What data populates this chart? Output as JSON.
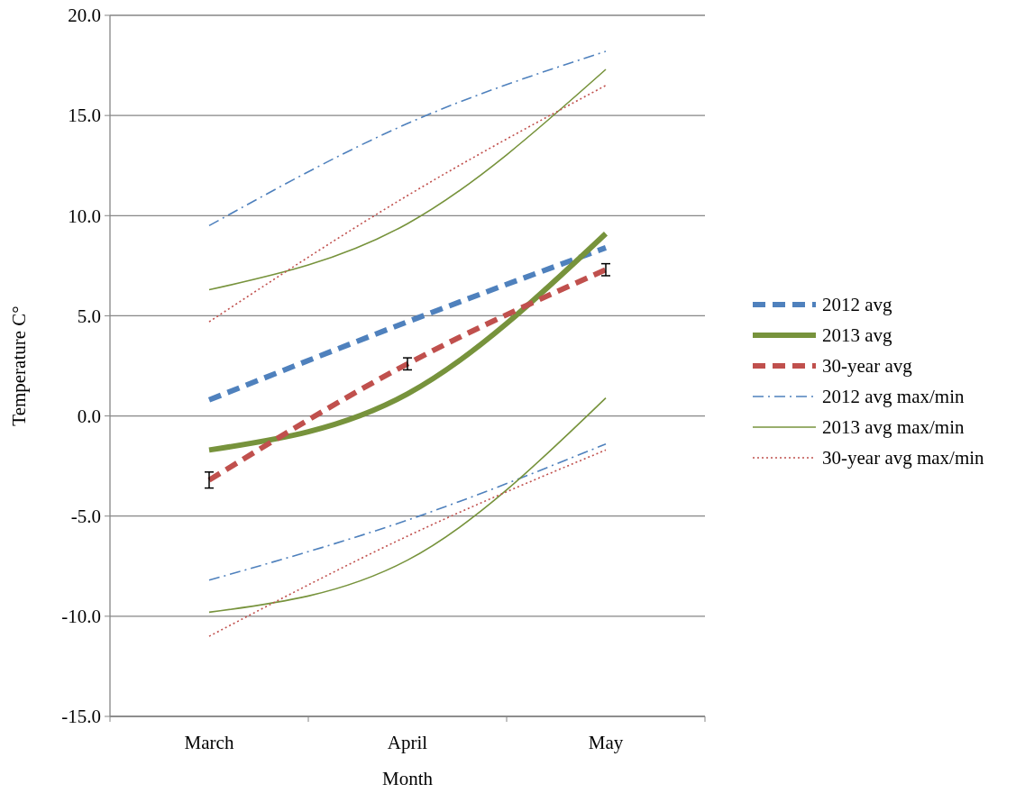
{
  "chart_data": {
    "type": "line",
    "xlabel": "Month",
    "ylabel": "Temperature C°",
    "categories": [
      "March",
      "April",
      "May"
    ],
    "ylim": [
      -15,
      20
    ],
    "yticks": [
      {
        "value": -15,
        "label": "-15.0"
      },
      {
        "value": -10,
        "label": "-10.0"
      },
      {
        "value": -5,
        "label": "-5.0"
      },
      {
        "value": 0,
        "label": "0.0"
      },
      {
        "value": 5,
        "label": "5.0"
      },
      {
        "value": 10,
        "label": "10.0"
      },
      {
        "value": 15,
        "label": "15.0"
      },
      {
        "value": 20,
        "label": "20.0"
      }
    ],
    "grid": "y",
    "legend": "right",
    "series": [
      {
        "name": "2012 avg",
        "color": "#4f81bd",
        "values": [
          0.8,
          4.7,
          8.4
        ],
        "line_style": "dashed"
      },
      {
        "name": "2013 avg",
        "color": "#77933c",
        "values": [
          -1.7,
          1.1,
          9.1
        ],
        "line_style": "solid"
      },
      {
        "name": "30-year avg",
        "color": "#c0504d",
        "values": [
          -3.2,
          2.6,
          7.3
        ],
        "line_style": "dashed",
        "errors": [
          0.4,
          0.3,
          0.3
        ]
      },
      {
        "name": "2012 avg max/min",
        "color": "#4f81bd",
        "values": [
          9.5,
          14.6,
          18.2
        ],
        "line_style": "dashed"
      },
      {
        "name": "2013 avg max/min",
        "color": "#77933c",
        "values": [
          6.3,
          9.6,
          17.3
        ],
        "line_style": "solid"
      },
      {
        "name": "30-year avg max/min",
        "color": "#c0504d",
        "values": [
          4.7,
          11.0,
          16.5
        ],
        "line_style": "dotted"
      },
      {
        "color": "#4f81bd",
        "values": [
          -8.2,
          -5.2,
          -1.4
        ],
        "line_style": "dashed"
      },
      {
        "color": "#77933c",
        "values": [
          -9.8,
          -7.2,
          0.9
        ],
        "line_style": "solid"
      },
      {
        "color": "#c0504d",
        "values": [
          -11.0,
          -6.0,
          -1.7
        ],
        "line_style": "dotted"
      }
    ]
  }
}
